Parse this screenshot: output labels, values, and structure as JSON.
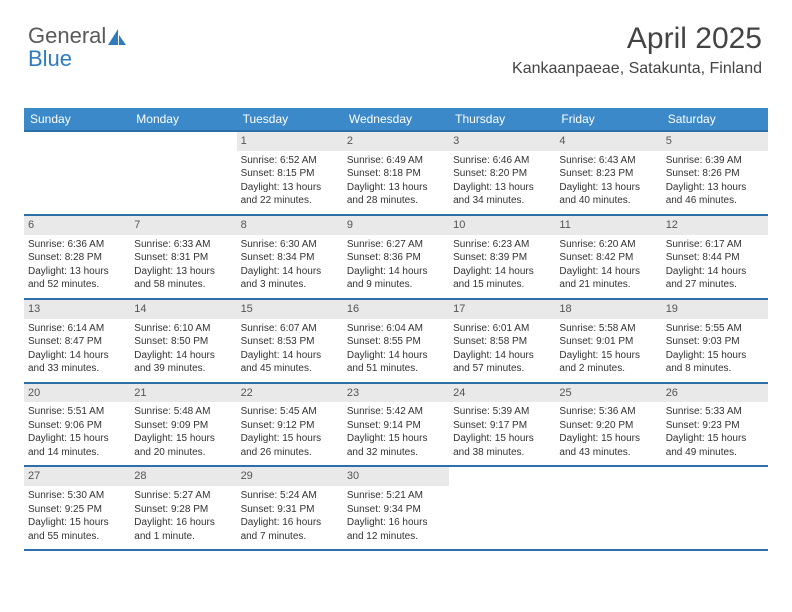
{
  "logo": {
    "text_gray": "General",
    "text_blue": "Blue"
  },
  "header": {
    "month_title": "April 2025",
    "location": "Kankaanpaeae, Satakunta, Finland"
  },
  "colors": {
    "header_bg": "#3b89c9",
    "header_text": "#ffffff",
    "week_border": "#2f6fa8",
    "daynum_bg": "#e9e9e9",
    "text": "#333333",
    "logo_gray": "#5a5a5a",
    "logo_blue": "#2f7bbf"
  },
  "dow": [
    "Sunday",
    "Monday",
    "Tuesday",
    "Wednesday",
    "Thursday",
    "Friday",
    "Saturday"
  ],
  "weeks": [
    [
      {
        "empty": true
      },
      {
        "empty": true
      },
      {
        "n": "1",
        "sr": "6:52 AM",
        "ss": "8:15 PM",
        "dl": "13 hours and 22 minutes."
      },
      {
        "n": "2",
        "sr": "6:49 AM",
        "ss": "8:18 PM",
        "dl": "13 hours and 28 minutes."
      },
      {
        "n": "3",
        "sr": "6:46 AM",
        "ss": "8:20 PM",
        "dl": "13 hours and 34 minutes."
      },
      {
        "n": "4",
        "sr": "6:43 AM",
        "ss": "8:23 PM",
        "dl": "13 hours and 40 minutes."
      },
      {
        "n": "5",
        "sr": "6:39 AM",
        "ss": "8:26 PM",
        "dl": "13 hours and 46 minutes."
      }
    ],
    [
      {
        "n": "6",
        "sr": "6:36 AM",
        "ss": "8:28 PM",
        "dl": "13 hours and 52 minutes."
      },
      {
        "n": "7",
        "sr": "6:33 AM",
        "ss": "8:31 PM",
        "dl": "13 hours and 58 minutes."
      },
      {
        "n": "8",
        "sr": "6:30 AM",
        "ss": "8:34 PM",
        "dl": "14 hours and 3 minutes."
      },
      {
        "n": "9",
        "sr": "6:27 AM",
        "ss": "8:36 PM",
        "dl": "14 hours and 9 minutes."
      },
      {
        "n": "10",
        "sr": "6:23 AM",
        "ss": "8:39 PM",
        "dl": "14 hours and 15 minutes."
      },
      {
        "n": "11",
        "sr": "6:20 AM",
        "ss": "8:42 PM",
        "dl": "14 hours and 21 minutes."
      },
      {
        "n": "12",
        "sr": "6:17 AM",
        "ss": "8:44 PM",
        "dl": "14 hours and 27 minutes."
      }
    ],
    [
      {
        "n": "13",
        "sr": "6:14 AM",
        "ss": "8:47 PM",
        "dl": "14 hours and 33 minutes."
      },
      {
        "n": "14",
        "sr": "6:10 AM",
        "ss": "8:50 PM",
        "dl": "14 hours and 39 minutes."
      },
      {
        "n": "15",
        "sr": "6:07 AM",
        "ss": "8:53 PM",
        "dl": "14 hours and 45 minutes."
      },
      {
        "n": "16",
        "sr": "6:04 AM",
        "ss": "8:55 PM",
        "dl": "14 hours and 51 minutes."
      },
      {
        "n": "17",
        "sr": "6:01 AM",
        "ss": "8:58 PM",
        "dl": "14 hours and 57 minutes."
      },
      {
        "n": "18",
        "sr": "5:58 AM",
        "ss": "9:01 PM",
        "dl": "15 hours and 2 minutes."
      },
      {
        "n": "19",
        "sr": "5:55 AM",
        "ss": "9:03 PM",
        "dl": "15 hours and 8 minutes."
      }
    ],
    [
      {
        "n": "20",
        "sr": "5:51 AM",
        "ss": "9:06 PM",
        "dl": "15 hours and 14 minutes."
      },
      {
        "n": "21",
        "sr": "5:48 AM",
        "ss": "9:09 PM",
        "dl": "15 hours and 20 minutes."
      },
      {
        "n": "22",
        "sr": "5:45 AM",
        "ss": "9:12 PM",
        "dl": "15 hours and 26 minutes."
      },
      {
        "n": "23",
        "sr": "5:42 AM",
        "ss": "9:14 PM",
        "dl": "15 hours and 32 minutes."
      },
      {
        "n": "24",
        "sr": "5:39 AM",
        "ss": "9:17 PM",
        "dl": "15 hours and 38 minutes."
      },
      {
        "n": "25",
        "sr": "5:36 AM",
        "ss": "9:20 PM",
        "dl": "15 hours and 43 minutes."
      },
      {
        "n": "26",
        "sr": "5:33 AM",
        "ss": "9:23 PM",
        "dl": "15 hours and 49 minutes."
      }
    ],
    [
      {
        "n": "27",
        "sr": "5:30 AM",
        "ss": "9:25 PM",
        "dl": "15 hours and 55 minutes."
      },
      {
        "n": "28",
        "sr": "5:27 AM",
        "ss": "9:28 PM",
        "dl": "16 hours and 1 minute."
      },
      {
        "n": "29",
        "sr": "5:24 AM",
        "ss": "9:31 PM",
        "dl": "16 hours and 7 minutes."
      },
      {
        "n": "30",
        "sr": "5:21 AM",
        "ss": "9:34 PM",
        "dl": "16 hours and 12 minutes."
      },
      {
        "empty": true
      },
      {
        "empty": true
      },
      {
        "empty": true
      }
    ]
  ],
  "labels": {
    "sunrise": "Sunrise:",
    "sunset": "Sunset:",
    "daylight": "Daylight:"
  }
}
